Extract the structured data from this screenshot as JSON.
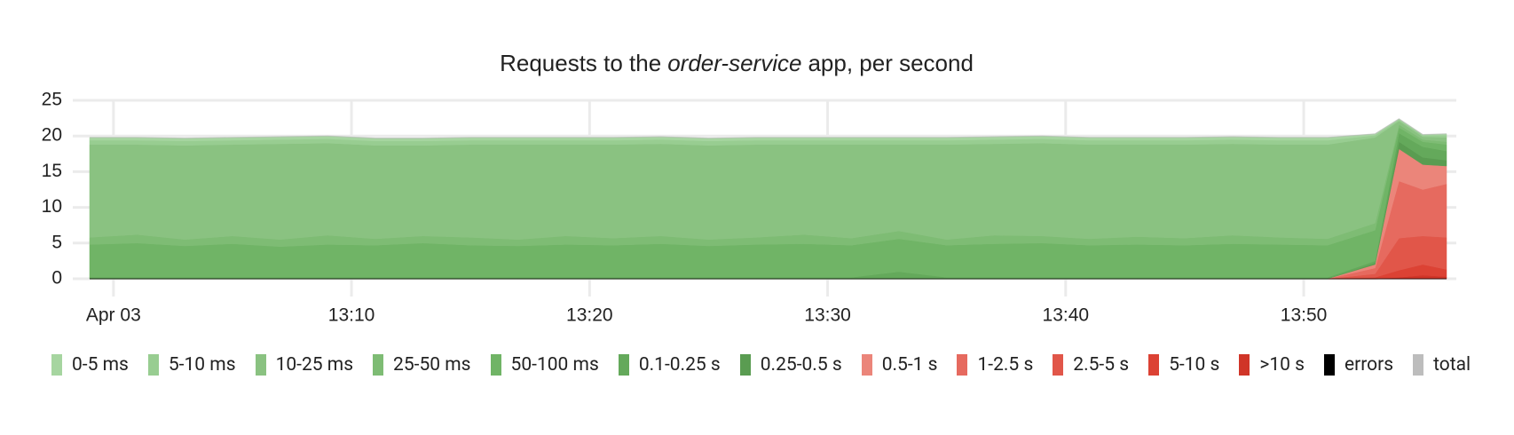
{
  "chart_data": {
    "type": "area",
    "title": {
      "before": "Requests to the",
      "emphasis": "order-service",
      "after": "app, per second"
    },
    "x": [
      "12:59",
      "13:01",
      "13:03",
      "13:05",
      "13:07",
      "13:09",
      "13:11",
      "13:13",
      "13:15",
      "13:17",
      "13:19",
      "13:21",
      "13:23",
      "13:25",
      "13:27",
      "13:29",
      "13:31",
      "13:33",
      "13:35",
      "13:37",
      "13:39",
      "13:41",
      "13:43",
      "13:45",
      "13:47",
      "13:49",
      "13:51",
      "13:53",
      "13:54",
      "13:55",
      "13:56"
    ],
    "xlim": [
      "12:59",
      "13:56"
    ],
    "xticks": [
      {
        "value": "13:00",
        "label": "Apr 03"
      },
      "13:10",
      "13:20",
      "13:30",
      "13:40",
      "13:50"
    ],
    "ylim": [
      0,
      25
    ],
    "yticks": [
      0,
      5,
      10,
      15,
      20,
      25
    ],
    "grid": true,
    "stacked": true,
    "series": [
      {
        "name": "0-5 ms",
        "color": "#a6d5a0",
        "values": [
          0.4,
          0.4,
          0.4,
          0.4,
          0.4,
          0.4,
          0.4,
          0.4,
          0.4,
          0.4,
          0.4,
          0.4,
          0.4,
          0.4,
          0.4,
          0.4,
          0.4,
          0.4,
          0.4,
          0.4,
          0.4,
          0.4,
          0.4,
          0.4,
          0.4,
          0.4,
          0.4,
          0.2,
          0.1,
          0.1,
          0.2
        ]
      },
      {
        "name": "5-10 ms",
        "color": "#98cd91",
        "values": [
          0.6,
          0.6,
          0.6,
          0.6,
          0.6,
          0.6,
          0.6,
          0.6,
          0.6,
          0.6,
          0.6,
          0.6,
          0.6,
          0.6,
          0.6,
          0.6,
          0.6,
          0.6,
          0.6,
          0.6,
          0.6,
          0.6,
          0.6,
          0.6,
          0.6,
          0.6,
          0.6,
          0.3,
          0.2,
          0.2,
          0.3
        ]
      },
      {
        "name": "10-25 ms",
        "color": "#8ac281",
        "values": [
          13.0,
          12.6,
          13.2,
          12.8,
          13.4,
          12.9,
          13.1,
          12.7,
          13.0,
          13.3,
          12.8,
          13.1,
          12.9,
          13.2,
          13.0,
          12.6,
          13.1,
          12.1,
          13.3,
          12.8,
          13.0,
          13.2,
          12.9,
          13.1,
          12.8,
          13.0,
          13.2,
          12.0,
          0.5,
          0.4,
          0.6
        ]
      },
      {
        "name": "25-50 ms",
        "color": "#7ebc74",
        "values": [
          1.0,
          1.2,
          0.9,
          1.1,
          1.0,
          1.3,
          0.9,
          1.0,
          1.1,
          0.9,
          1.2,
          1.0,
          1.1,
          0.9,
          1.0,
          1.3,
          1.0,
          1.1,
          0.8,
          1.2,
          1.0,
          0.9,
          1.1,
          1.0,
          1.2,
          1.0,
          0.9,
          1.0,
          0.4,
          0.3,
          0.4
        ]
      },
      {
        "name": "50-100 ms",
        "color": "#70b466",
        "values": [
          4.6,
          4.8,
          4.4,
          4.7,
          4.3,
          4.6,
          4.5,
          4.8,
          4.5,
          4.4,
          4.6,
          4.5,
          4.7,
          4.4,
          4.6,
          4.7,
          4.5,
          4.6,
          4.5,
          4.7,
          4.8,
          4.5,
          4.6,
          4.5,
          4.7,
          4.6,
          4.5,
          4.3,
          0.8,
          0.7,
          0.9
        ]
      },
      {
        "name": "0.1-0.25 s",
        "color": "#64a95b",
        "values": [
          0.2,
          0.2,
          0.2,
          0.2,
          0.2,
          0.2,
          0.2,
          0.2,
          0.2,
          0.2,
          0.2,
          0.2,
          0.2,
          0.2,
          0.2,
          0.2,
          0.2,
          1.0,
          0.2,
          0.2,
          0.2,
          0.2,
          0.2,
          0.2,
          0.2,
          0.2,
          0.2,
          0.3,
          1.2,
          1.5,
          1.3
        ]
      },
      {
        "name": "0.25-0.5 s",
        "color": "#5a9c51",
        "values": [
          0,
          0,
          0,
          0,
          0,
          0,
          0,
          0,
          0,
          0,
          0,
          0,
          0,
          0,
          0,
          0,
          0,
          0,
          0,
          0,
          0,
          0,
          0,
          0,
          0,
          0,
          0,
          0.2,
          1.0,
          1.0,
          0.8
        ]
      },
      {
        "name": "0.5-1 s",
        "color": "#eb857a",
        "values": [
          0,
          0,
          0,
          0,
          0,
          0,
          0,
          0,
          0,
          0,
          0,
          0,
          0,
          0,
          0,
          0,
          0,
          0,
          0,
          0,
          0,
          0,
          0,
          0,
          0,
          0,
          0,
          0.5,
          4.5,
          3.5,
          2.5
        ]
      },
      {
        "name": "1-2.5 s",
        "color": "#e66a5f",
        "values": [
          0,
          0,
          0,
          0,
          0,
          0,
          0,
          0,
          0,
          0,
          0,
          0,
          0,
          0,
          0,
          0,
          0,
          0,
          0,
          0,
          0,
          0,
          0,
          0,
          0,
          0,
          0,
          0.8,
          8.0,
          6.5,
          7.5
        ]
      },
      {
        "name": "2.5-5 s",
        "color": "#e15649",
        "values": [
          0,
          0,
          0,
          0,
          0,
          0,
          0,
          0,
          0,
          0,
          0,
          0,
          0,
          0,
          0,
          0,
          0,
          0,
          0,
          0,
          0,
          0,
          0,
          0,
          0,
          0,
          0,
          0.5,
          4.5,
          4.0,
          4.5
        ]
      },
      {
        "name": "5-10 s",
        "color": "#dc4234",
        "values": [
          0,
          0,
          0,
          0,
          0,
          0,
          0,
          0,
          0,
          0,
          0,
          0,
          0,
          0,
          0,
          0,
          0,
          0,
          0,
          0,
          0,
          0,
          0,
          0,
          0,
          0,
          0,
          0.2,
          1.0,
          1.5,
          1.0
        ]
      },
      {
        "name": ">10 s",
        "color": "#d03528",
        "values": [
          0,
          0,
          0,
          0,
          0,
          0,
          0,
          0,
          0,
          0,
          0,
          0,
          0,
          0,
          0,
          0,
          0,
          0,
          0,
          0,
          0,
          0,
          0,
          0,
          0,
          0,
          0,
          0,
          0.2,
          0.5,
          0.3
        ]
      },
      {
        "name": "errors",
        "color": "#000000",
        "type": "line",
        "values": [
          0,
          0,
          0,
          0,
          0,
          0,
          0,
          0,
          0,
          0,
          0,
          0,
          0,
          0,
          0,
          0,
          0,
          0,
          0,
          0,
          0,
          0,
          0,
          0,
          0,
          0,
          0,
          0,
          0,
          0,
          0
        ]
      },
      {
        "name": "total",
        "color": "#bdbdbd",
        "type": "line",
        "values": [
          19.8,
          19.8,
          19.7,
          19.8,
          19.9,
          20.0,
          19.7,
          19.7,
          19.8,
          19.8,
          19.8,
          19.8,
          19.9,
          19.7,
          19.8,
          19.8,
          19.8,
          19.8,
          19.8,
          19.9,
          20.0,
          19.8,
          19.8,
          19.8,
          19.9,
          19.8,
          19.8,
          20.3,
          22.4,
          20.2,
          20.3
        ]
      }
    ]
  }
}
